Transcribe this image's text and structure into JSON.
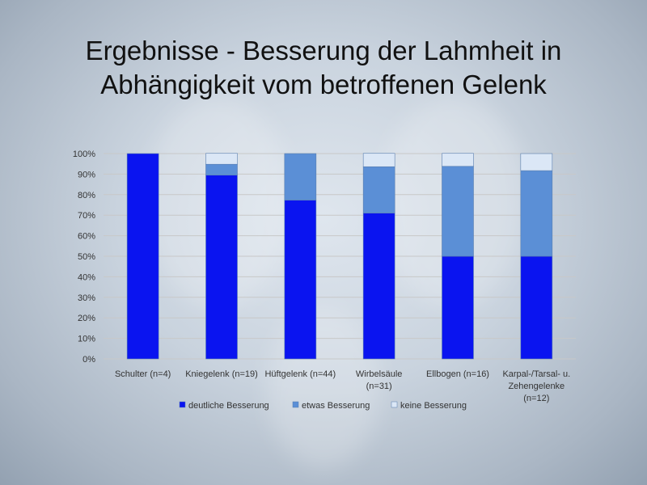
{
  "title": [
    "Ergebnisse - Besserung der Lahmheit in",
    "Abhängigkeit vom betroffenen Gelenk"
  ],
  "colors": {
    "deutliche": "#0a14f0",
    "etwas": "#5b8fd6",
    "keine": "#dbe7f6",
    "grid": "#c8c8c8"
  },
  "chart_data": {
    "type": "bar",
    "stacked": true,
    "categories": [
      [
        "Schulter (n=4)"
      ],
      [
        "Kniegelenk (n=19)"
      ],
      [
        "Hüftgelenk (n=44)"
      ],
      [
        "Wirbelsäule",
        "(n=31)"
      ],
      [
        "Ellbogen (n=16)"
      ],
      [
        "Karpal-/Tarsal- u.",
        "Zehengelenke",
        "(n=12)"
      ]
    ],
    "series": [
      {
        "name": "deutliche Besserung",
        "color": "#0a14f0",
        "values": [
          100,
          89.5,
          77.3,
          71.0,
          50.0,
          50.0
        ]
      },
      {
        "name": "etwas Besserung",
        "color": "#5b8fd6",
        "values": [
          0,
          5.3,
          22.7,
          22.6,
          43.8,
          41.7
        ]
      },
      {
        "name": "keine Besserung",
        "color": "#dbe7f6",
        "values": [
          0,
          5.3,
          0,
          6.5,
          6.3,
          8.3
        ]
      }
    ],
    "yticks": [
      "0%",
      "10%",
      "20%",
      "30%",
      "40%",
      "50%",
      "60%",
      "70%",
      "80%",
      "90%",
      "100%"
    ],
    "ylim": [
      0,
      100
    ],
    "grid": true,
    "legend": "bottom"
  }
}
